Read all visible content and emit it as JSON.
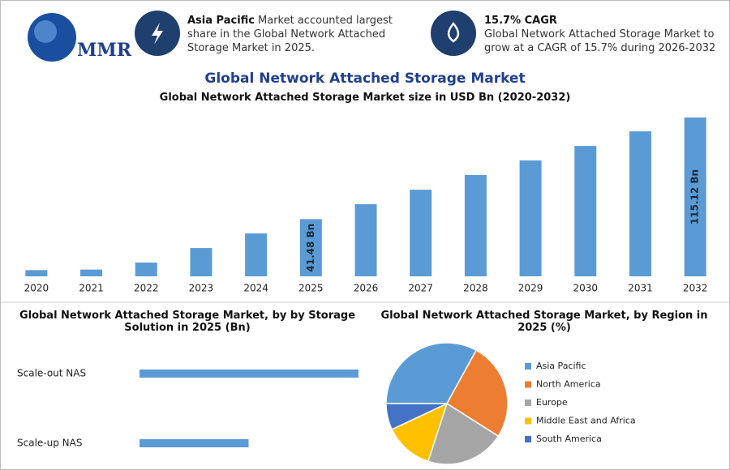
{
  "header": {
    "logo": "MMR",
    "info": [
      {
        "bold": "Asia Pacific",
        "text": "Market accounted largest share in the Global Network Attached Storage Market in 2025."
      },
      {
        "bold": "15.7% CAGR",
        "text": "Global Network Attached Storage Market to grow at a CAGR of 15.7% during 2026-2032"
      }
    ]
  },
  "chart_data": [
    {
      "type": "bar",
      "title": "Global Network Attached Storage Market",
      "subtitle": "Global Network Attached Storage Market size in USD Bn (2020-2032)",
      "categories": [
        "2020",
        "2021",
        "2022",
        "2023",
        "2024",
        "2025",
        "2026",
        "2027",
        "2028",
        "2029",
        "2030",
        "2031",
        "2032"
      ],
      "values": [
        4.5,
        4.9,
        10,
        20.5,
        31.1,
        41.48,
        52.3,
        62.8,
        73.4,
        84,
        94.5,
        105.1,
        115.12
      ],
      "value_labels": [
        null,
        null,
        null,
        null,
        null,
        "41.48 Bn",
        null,
        null,
        null,
        null,
        null,
        null,
        "115.12 Bn"
      ],
      "color": "#5b9bd5"
    },
    {
      "type": "hbar",
      "title": "Global Network Attached Storage Market, by by Storage Solution in 2025 (Bn)",
      "categories": [
        "Scale-out NAS",
        "Scale-up NAS"
      ],
      "values": [
        27.7,
        13.8
      ],
      "color": "#5b9bd5"
    },
    {
      "type": "pie",
      "title": "Global Network Attached Storage Market, by Region in 2025 (%)",
      "categories": [
        "Asia Pacific",
        "North America",
        "Europe",
        "Middle East and Africa",
        "South America"
      ],
      "values": [
        33,
        26,
        21,
        13,
        7
      ],
      "colors": [
        "#5b9bd5",
        "#ed7d31",
        "#a5a5a5",
        "#ffc000",
        "#4472c4"
      ]
    }
  ]
}
